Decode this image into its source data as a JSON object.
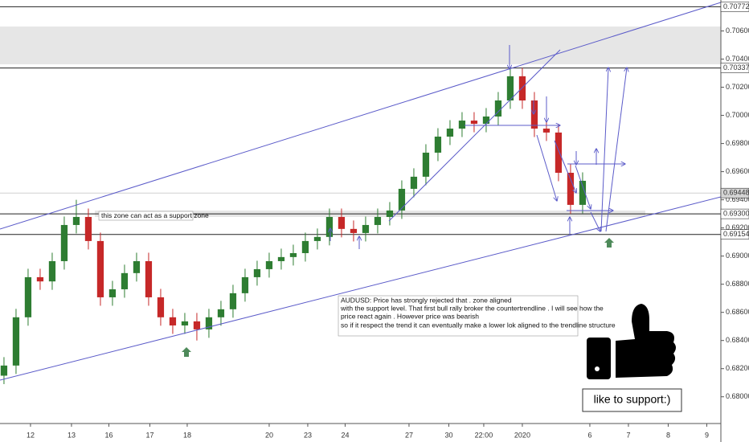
{
  "chart_data": {
    "type": "candlestick",
    "x": [
      0,
      1,
      2,
      3,
      4,
      5,
      6,
      7,
      8,
      9,
      10,
      11,
      12,
      13,
      14,
      15,
      16,
      17,
      18,
      19,
      20,
      21,
      22,
      23,
      24,
      25,
      26,
      27,
      28,
      29,
      30,
      31,
      32,
      33,
      34,
      35,
      36,
      37,
      38,
      39,
      40,
      41,
      42,
      43,
      44,
      45,
      46,
      47,
      48
    ],
    "open": [
      0.6815,
      0.68222,
      0.68565,
      0.6885,
      0.6882,
      0.68964,
      0.69221,
      0.69278,
      0.69107,
      0.68707,
      0.68764,
      0.68879,
      0.68964,
      0.68707,
      0.68565,
      0.68507,
      0.68536,
      0.68479,
      0.68565,
      0.68622,
      0.68736,
      0.6885,
      0.68907,
      0.68964,
      0.68993,
      0.69021,
      0.69107,
      0.69136,
      0.69278,
      0.69193,
      0.69164,
      0.69221,
      0.69278,
      0.69324,
      0.69478,
      0.69564,
      0.69735,
      0.69849,
      0.69906,
      0.69963,
      0.6994,
      0.69992,
      0.70106,
      0.70278,
      0.70106,
      0.69906,
      0.69878,
      0.69592,
      0.69364
    ],
    "high": [
      0.68282,
      0.68625,
      0.6891,
      0.6891,
      0.69024,
      0.69281,
      0.694,
      0.69338,
      0.69167,
      0.68824,
      0.68939,
      0.69024,
      0.69024,
      0.68767,
      0.68625,
      0.68596,
      0.68596,
      0.68625,
      0.68682,
      0.68796,
      0.6891,
      0.68967,
      0.69024,
      0.69053,
      0.69081,
      0.69167,
      0.69196,
      0.69338,
      0.69338,
      0.69253,
      0.69281,
      0.69338,
      0.69384,
      0.69538,
      0.69624,
      0.69795,
      0.69909,
      0.69966,
      0.70023,
      0.70023,
      0.70052,
      0.70166,
      0.70338,
      0.70338,
      0.70166,
      0.69966,
      0.69938,
      0.69652,
      0.69595
    ],
    "low": [
      0.6809,
      0.68162,
      0.68505,
      0.6876,
      0.6876,
      0.68904,
      0.69161,
      0.69047,
      0.68647,
      0.68647,
      0.68704,
      0.68819,
      0.68647,
      0.68505,
      0.68447,
      0.68447,
      0.684,
      0.68419,
      0.68505,
      0.68562,
      0.68676,
      0.6879,
      0.68847,
      0.68904,
      0.68933,
      0.68961,
      0.69047,
      0.69076,
      0.69133,
      0.69104,
      0.69104,
      0.69161,
      0.69218,
      0.69264,
      0.69418,
      0.69504,
      0.69675,
      0.69789,
      0.69846,
      0.6988,
      0.6988,
      0.69932,
      0.70046,
      0.70046,
      0.69846,
      0.69818,
      0.69532,
      0.693,
      0.69304
    ],
    "close": [
      0.68222,
      0.68565,
      0.6885,
      0.6882,
      0.68964,
      0.69221,
      0.69278,
      0.69107,
      0.68707,
      0.68764,
      0.68879,
      0.68964,
      0.68707,
      0.68565,
      0.68507,
      0.68536,
      0.68479,
      0.68565,
      0.68622,
      0.68736,
      0.6885,
      0.68907,
      0.68964,
      0.68993,
      0.69021,
      0.69107,
      0.69136,
      0.69278,
      0.69193,
      0.69164,
      0.69221,
      0.69278,
      0.69324,
      0.69478,
      0.69564,
      0.69735,
      0.69849,
      0.69906,
      0.69963,
      0.6994,
      0.69992,
      0.70106,
      0.70278,
      0.70106,
      0.69906,
      0.69878,
      0.69592,
      0.69364,
      0.69535
    ],
    "up_color": "#2e7d32",
    "down_color": "#c62828",
    "xlim": [
      -0.33,
      59.47
    ],
    "xticks": [
      {
        "value": 2.2,
        "label": "12"
      },
      {
        "value": 5.6,
        "label": "13"
      },
      {
        "value": 8.7,
        "label": "16"
      },
      {
        "value": 12.1,
        "label": "17"
      },
      {
        "value": 15.2,
        "label": "18"
      },
      {
        "value": 22,
        "label": "20"
      },
      {
        "value": 25.2,
        "label": "23"
      },
      {
        "value": 28.3,
        "label": "24"
      },
      {
        "value": 33.6,
        "label": "27"
      },
      {
        "value": 36.9,
        "label": "30"
      },
      {
        "value": 39.8,
        "label": "22:00"
      },
      {
        "value": 43,
        "label": "2020"
      },
      {
        "value": 48.6,
        "label": "6"
      },
      {
        "value": 51.8,
        "label": "7"
      },
      {
        "value": 55.1,
        "label": "8"
      },
      {
        "value": 58.3,
        "label": "9"
      }
    ],
    "ylim": [
      0.6781,
      0.7082
    ],
    "yticks": [
      {
        "value": 0.706,
        "label": "0.70600"
      },
      {
        "value": 0.704,
        "label": "0.70400"
      },
      {
        "value": 0.702,
        "label": "0.70200"
      },
      {
        "value": 0.7,
        "label": "0.70000"
      },
      {
        "value": 0.698,
        "label": "0.69800"
      },
      {
        "value": 0.696,
        "label": "0.69600"
      },
      {
        "value": 0.694,
        "label": "0.69400"
      },
      {
        "value": 0.692,
        "label": "0.69200"
      },
      {
        "value": 0.69,
        "label": "0.69000"
      },
      {
        "value": 0.688,
        "label": "0.68800"
      },
      {
        "value": 0.686,
        "label": "0.68600"
      },
      {
        "value": 0.684,
        "label": "0.68400"
      },
      {
        "value": 0.682,
        "label": "0.68200"
      },
      {
        "value": 0.68,
        "label": "0.68000"
      }
    ],
    "levels": [
      {
        "value": 0.70772,
        "label": "0.70772"
      },
      {
        "value": 0.70337,
        "label": "0.70337"
      },
      {
        "value": 0.693,
        "label": "0.69300"
      },
      {
        "value": 0.69154,
        "label": "0.69154"
      }
    ],
    "current_price": {
      "value": 0.69448,
      "label": "0.69448"
    },
    "annotations": {
      "zone": "this zone can act as a support zone",
      "analysis": [
        "AUDUSD: Price has strongly rejected that . zone aligned",
        "with the support level. That first bull rally broker the countertrendline . I will see how the",
        "price react again  . However price was bearish",
        "so if it respect the trend it can eventually make a lower lok aligned to the trendline structure"
      ],
      "cta": "like to support:)"
    }
  }
}
